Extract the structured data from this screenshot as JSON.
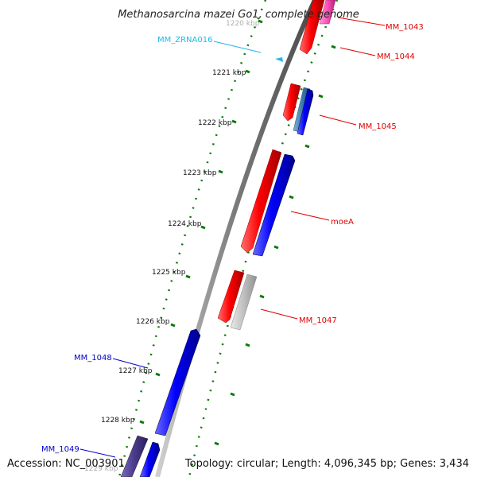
{
  "title": "Methanosarcina mazei Go1, complete genome",
  "footer": {
    "accession": "Accession: NC_003901",
    "info": "Topology: circular; Length: 4,096,345 bp; Genes: 3,434"
  },
  "ticks": [
    "1220 kbp",
    "1221 kbp",
    "1222 kbp",
    "1223 kbp",
    "1224 kbp",
    "1225 kbp",
    "1226 kbp",
    "1227 kbp",
    "1228 kbp",
    "1229 kbp"
  ],
  "gene_labels": [
    {
      "text": "MM_1043",
      "color": "#e00000"
    },
    {
      "text": "MM_1044",
      "color": "#e00000"
    },
    {
      "text": "MM_ZRNA016",
      "color": "#22b8e6"
    },
    {
      "text": "MM_1045",
      "color": "#e00000"
    },
    {
      "text": "moeA",
      "color": "#e00000"
    },
    {
      "text": "MM_1047",
      "color": "#e00000"
    },
    {
      "text": "MM_1048",
      "color": "#0000cc"
    },
    {
      "text": "MM_1049",
      "color": "#0000cc"
    }
  ],
  "colors": {
    "backbone": "#7a7a7a",
    "forward_cds": "#ff0000",
    "reverse_cds": "#0000ff",
    "pseudogene_grey": "#bdbdbd",
    "steelblue_cds": "#3f7fb0",
    "pink_cds": "#ff4db8",
    "purple_cds": "#4a3a8c",
    "rna": "#22b8e6",
    "tick": "#0a7a0a"
  }
}
